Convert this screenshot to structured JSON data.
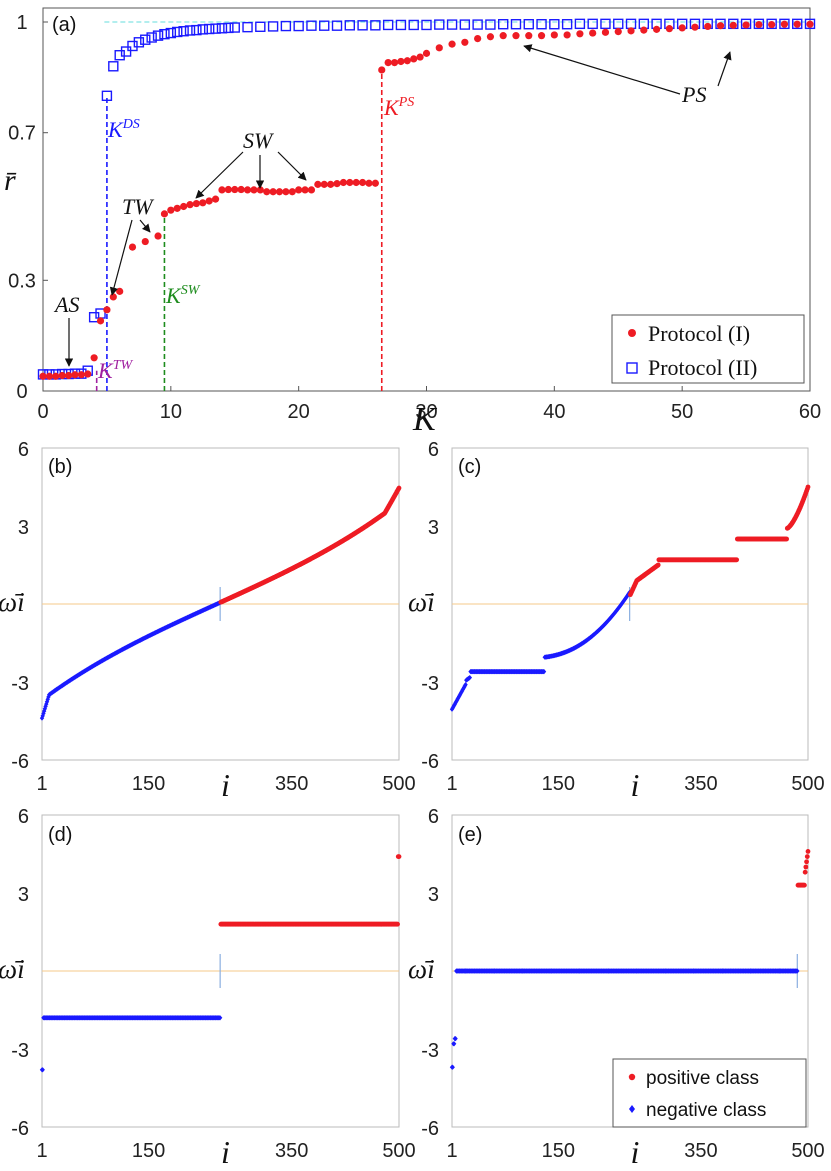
{
  "colors": {
    "red": "#ee1c24",
    "blue": "#1a1aff",
    "green": "#1e8c1e",
    "purple": "#a020a0",
    "cyan": "#66dddd",
    "orange": "#f5c98a",
    "lightblue": "#8aaee0"
  },
  "chart_data": [
    {
      "id": "a",
      "type": "scatter",
      "panel_label": "(a)",
      "xlabel": "K",
      "ylabel": "r̄",
      "xlim": [
        0,
        60
      ],
      "ylim": [
        0,
        1
      ],
      "xticks": [
        "0",
        "10",
        "20",
        "30",
        "40",
        "50",
        "60"
      ],
      "yticks": [
        "0",
        "0.3",
        "0.7",
        "1"
      ],
      "series": [
        {
          "name": "Protocol (I)",
          "marker": "dot",
          "x": [
            0,
            0.5,
            1,
            1.5,
            2,
            2.5,
            3,
            3.5,
            4,
            4.5,
            5,
            5.5,
            6,
            7,
            8,
            9,
            9.5,
            10,
            10.5,
            11,
            11.5,
            12,
            12.5,
            13,
            13.5,
            14,
            14.5,
            15,
            15.5,
            16,
            16.5,
            17,
            17.5,
            18,
            18.5,
            19,
            19.5,
            20,
            20.5,
            21,
            21.5,
            22,
            22.5,
            23,
            23.5,
            24,
            24.5,
            25,
            25.5,
            26,
            26.5,
            27,
            27.5,
            28,
            28.5,
            29,
            29.5,
            30,
            31,
            32,
            33,
            34,
            35,
            36,
            37,
            38,
            39,
            40,
            41,
            42,
            43,
            44,
            45,
            46,
            47,
            48,
            49,
            50,
            51,
            52,
            53,
            54,
            55,
            56,
            57,
            58,
            59,
            60
          ],
          "y": [
            0.04,
            0.04,
            0.04,
            0.042,
            0.042,
            0.044,
            0.044,
            0.046,
            0.09,
            0.19,
            0.22,
            0.255,
            0.27,
            0.39,
            0.405,
            0.42,
            0.48,
            0.49,
            0.495,
            0.5,
            0.505,
            0.508,
            0.51,
            0.515,
            0.52,
            0.545,
            0.546,
            0.546,
            0.546,
            0.545,
            0.545,
            0.545,
            0.54,
            0.54,
            0.54,
            0.54,
            0.54,
            0.545,
            0.545,
            0.545,
            0.56,
            0.56,
            0.56,
            0.562,
            0.565,
            0.565,
            0.565,
            0.565,
            0.563,
            0.563,
            0.87,
            0.89,
            0.89,
            0.893,
            0.895,
            0.9,
            0.905,
            0.915,
            0.93,
            0.94,
            0.945,
            0.955,
            0.96,
            0.963,
            0.963,
            0.963,
            0.963,
            0.965,
            0.965,
            0.968,
            0.97,
            0.972,
            0.974,
            0.976,
            0.978,
            0.98,
            0.982,
            0.984,
            0.986,
            0.988,
            0.99,
            0.991,
            0.992,
            0.993,
            0.993,
            0.994,
            0.994,
            0.994
          ]
        },
        {
          "name": "Protocol (II)",
          "marker": "square",
          "x": [
            0,
            0.5,
            1,
            1.5,
            2,
            2.5,
            3,
            3.5,
            4,
            4.5,
            5,
            5.5,
            6,
            6.5,
            7,
            7.5,
            8,
            8.5,
            9,
            9.5,
            10,
            10.5,
            11,
            11.5,
            12,
            12.5,
            13,
            13.5,
            14,
            14.5,
            15,
            16,
            17,
            18,
            19,
            20,
            21,
            22,
            23,
            24,
            25,
            26,
            27,
            28,
            29,
            30,
            31,
            32,
            33,
            34,
            35,
            36,
            37,
            38,
            39,
            40,
            41,
            42,
            43,
            44,
            45,
            46,
            47,
            48,
            49,
            50,
            51,
            52,
            53,
            54,
            55,
            56,
            57,
            58,
            59,
            60
          ],
          "y": [
            0.045,
            0.045,
            0.045,
            0.046,
            0.046,
            0.047,
            0.047,
            0.055,
            0.2,
            0.21,
            0.8,
            0.88,
            0.91,
            0.92,
            0.935,
            0.945,
            0.952,
            0.958,
            0.963,
            0.967,
            0.97,
            0.973,
            0.975,
            0.977,
            0.978,
            0.98,
            0.981,
            0.982,
            0.983,
            0.984,
            0.985,
            0.986,
            0.987,
            0.988,
            0.989,
            0.989,
            0.99,
            0.99,
            0.99,
            0.991,
            0.991,
            0.991,
            0.992,
            0.992,
            0.992,
            0.992,
            0.993,
            0.993,
            0.993,
            0.993,
            0.993,
            0.994,
            0.994,
            0.994,
            0.994,
            0.994,
            0.994,
            0.995,
            0.995,
            0.995,
            0.995,
            0.995,
            0.995,
            0.995,
            0.995,
            0.995,
            0.995,
            0.995,
            0.995,
            0.995,
            0.995,
            0.995,
            0.995,
            0.995,
            0.995,
            0.995
          ]
        }
      ],
      "reference_lines": [
        {
          "orientation": "horizontal",
          "value": 1,
          "color": "cyan"
        },
        {
          "orientation": "vertical",
          "value": 4.2,
          "ymax": 0.055,
          "color": "purple",
          "label": "TW"
        },
        {
          "orientation": "vertical",
          "value": 5,
          "ymax": 0.8,
          "color": "blue",
          "label": "DS"
        },
        {
          "orientation": "vertical",
          "value": 9.5,
          "ymax": 0.47,
          "color": "green",
          "label": "SW"
        },
        {
          "orientation": "vertical",
          "value": 26.5,
          "ymax": 0.87,
          "color": "red",
          "label": "PS"
        }
      ],
      "annotations": [
        "AS",
        "TW",
        "SW",
        "PS"
      ],
      "legend": [
        "Protocol (I)",
        "Protocol (II)"
      ],
      "legend_position": "bottom-right"
    },
    {
      "id": "b",
      "type": "scatter",
      "panel_label": "(b)",
      "profile": "smooth",
      "ylabel": "ω̄i",
      "xlabel": "i",
      "xlim": [
        1,
        500
      ],
      "ylim": [
        -6,
        6
      ],
      "xticks": [
        "1",
        "150",
        "350",
        "500"
      ],
      "yticks": [
        "6",
        "3",
        "-3",
        "-6"
      ],
      "split_index": 250
    },
    {
      "id": "c",
      "type": "scatter",
      "panel_label": "(c)",
      "profile": "plateaus",
      "ylabel": "ω̄i",
      "xlabel": "i",
      "xlim": [
        1,
        500
      ],
      "ylim": [
        -6,
        6
      ],
      "xticks": [
        "1",
        "150",
        "350",
        "500"
      ],
      "yticks": [
        "6",
        "3",
        "-3",
        "-6"
      ],
      "split_index": 250
    },
    {
      "id": "d",
      "type": "scatter",
      "panel_label": "(d)",
      "profile": "two-cluster",
      "ylabel": "ω̄i",
      "xlabel": "i",
      "xlim": [
        1,
        500
      ],
      "ylim": [
        -6,
        6
      ],
      "xticks": [
        "1",
        "150",
        "350",
        "500"
      ],
      "yticks": [
        "6",
        "3",
        "-3",
        "-6"
      ],
      "split_index": 250
    },
    {
      "id": "e",
      "type": "scatter",
      "panel_label": "(e)",
      "profile": "one-cluster",
      "ylabel": "ω̄i",
      "xlabel": "i",
      "xlim": [
        1,
        500
      ],
      "ylim": [
        -6,
        6
      ],
      "xticks": [
        "1",
        "150",
        "350",
        "500"
      ],
      "yticks": [
        "6",
        "3",
        "-3",
        "-6"
      ],
      "split_index": 485,
      "legend": [
        "positive class",
        "negative class"
      ],
      "legend_position": "bottom-right"
    }
  ]
}
